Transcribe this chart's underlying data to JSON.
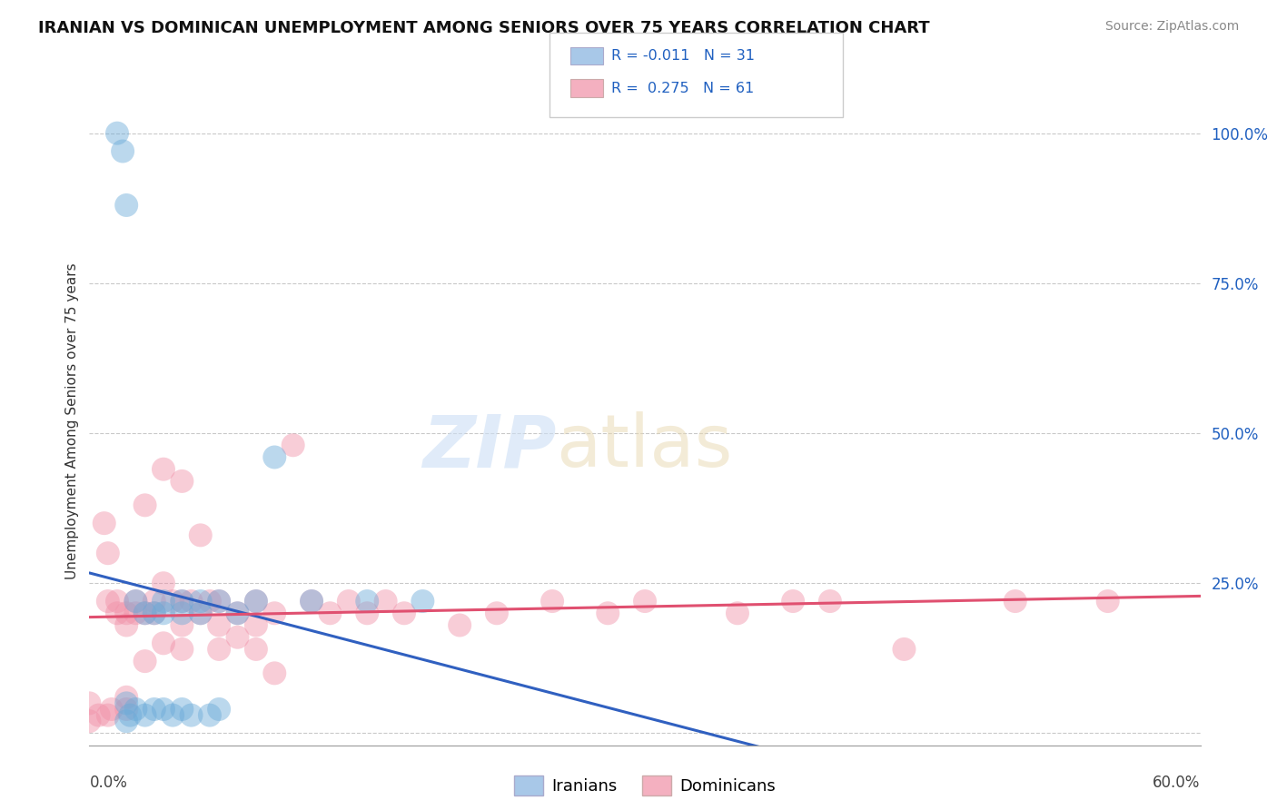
{
  "title": "IRANIAN VS DOMINICAN UNEMPLOYMENT AMONG SENIORS OVER 75 YEARS CORRELATION CHART",
  "source": "Source: ZipAtlas.com",
  "ylabel": "Unemployment Among Seniors over 75 years",
  "xlim": [
    0.0,
    0.6
  ],
  "ylim": [
    -0.02,
    1.06
  ],
  "y_ticks": [
    0.0,
    0.25,
    0.5,
    0.75,
    1.0
  ],
  "y_tick_labels": [
    "",
    "25.0%",
    "50.0%",
    "75.0%",
    "100.0%"
  ],
  "legend_color1": "#a8c8e8",
  "legend_color2": "#f4b0c0",
  "color_iranian": "#6aaad8",
  "color_dominican": "#f090a8",
  "trend_color_iranian": "#3060c0",
  "trend_color_dominican": "#e05070",
  "iranian_x": [
    0.015,
    0.018,
    0.02,
    0.02,
    0.02,
    0.022,
    0.025,
    0.025,
    0.03,
    0.03,
    0.035,
    0.035,
    0.04,
    0.04,
    0.04,
    0.045,
    0.05,
    0.05,
    0.05,
    0.055,
    0.06,
    0.06,
    0.065,
    0.07,
    0.07,
    0.08,
    0.09,
    0.1,
    0.12,
    0.15,
    0.18
  ],
  "iranian_y": [
    1.0,
    0.97,
    0.88,
    0.05,
    0.02,
    0.03,
    0.22,
    0.04,
    0.2,
    0.03,
    0.2,
    0.04,
    0.22,
    0.2,
    0.04,
    0.03,
    0.22,
    0.2,
    0.04,
    0.03,
    0.22,
    0.2,
    0.03,
    0.22,
    0.04,
    0.2,
    0.22,
    0.46,
    0.22,
    0.22,
    0.22
  ],
  "dominican_x": [
    0.0,
    0.0,
    0.005,
    0.008,
    0.01,
    0.01,
    0.01,
    0.012,
    0.015,
    0.015,
    0.02,
    0.02,
    0.02,
    0.02,
    0.025,
    0.025,
    0.03,
    0.03,
    0.03,
    0.035,
    0.035,
    0.04,
    0.04,
    0.04,
    0.045,
    0.05,
    0.05,
    0.05,
    0.05,
    0.055,
    0.06,
    0.06,
    0.065,
    0.07,
    0.07,
    0.07,
    0.08,
    0.08,
    0.09,
    0.09,
    0.09,
    0.1,
    0.1,
    0.11,
    0.12,
    0.13,
    0.14,
    0.15,
    0.16,
    0.17,
    0.2,
    0.22,
    0.25,
    0.28,
    0.3,
    0.35,
    0.38,
    0.4,
    0.44,
    0.5,
    0.55
  ],
  "dominican_y": [
    0.05,
    0.02,
    0.03,
    0.35,
    0.3,
    0.22,
    0.03,
    0.04,
    0.22,
    0.2,
    0.2,
    0.18,
    0.06,
    0.04,
    0.22,
    0.2,
    0.38,
    0.2,
    0.12,
    0.22,
    0.2,
    0.44,
    0.25,
    0.15,
    0.22,
    0.42,
    0.22,
    0.18,
    0.14,
    0.22,
    0.33,
    0.2,
    0.22,
    0.22,
    0.18,
    0.14,
    0.2,
    0.16,
    0.22,
    0.18,
    0.14,
    0.2,
    0.1,
    0.48,
    0.22,
    0.2,
    0.22,
    0.2,
    0.22,
    0.2,
    0.18,
    0.2,
    0.22,
    0.2,
    0.22,
    0.2,
    0.22,
    0.22,
    0.14,
    0.22,
    0.22
  ]
}
